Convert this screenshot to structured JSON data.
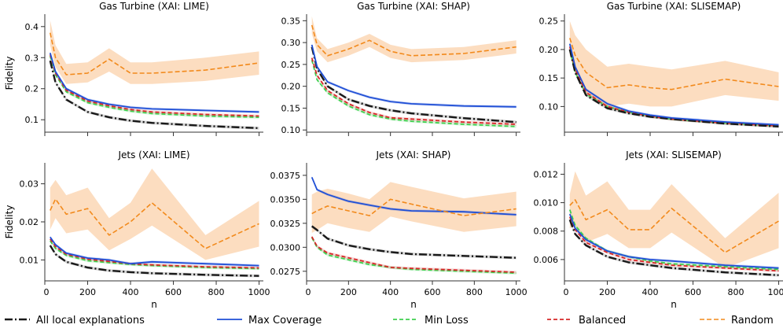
{
  "figure": {
    "shared_xlabel": "n",
    "shared_ylabel": "Fidelity",
    "x_ticks": [
      "200",
      "400",
      "600",
      "800",
      "1000"
    ]
  },
  "legend": [
    {
      "label": "All local explanations",
      "color": "#1a1a1a",
      "style": "dashdot"
    },
    {
      "label": "Max Coverage",
      "color": "#1f4fd6",
      "style": "solid"
    },
    {
      "label": "Min Loss",
      "color": "#3fcf4f",
      "style": "dashed"
    },
    {
      "label": "Balanced",
      "color": "#d62728",
      "style": "dashed"
    },
    {
      "label": "Random",
      "color": "#f28a1c",
      "style": "dashed"
    }
  ],
  "colors": {
    "all": "#1a1a1a",
    "maxcov": "#1f4fd6",
    "minloss": "#3fcf4f",
    "balanced": "#d62728",
    "random": "#f28a1c",
    "random_band": "#f9c18d"
  },
  "chart_data": [
    {
      "type": "line",
      "title": "Gas Turbine (XAI: LIME)",
      "xlabel": "",
      "ylabel": "Fidelity",
      "xlim": [
        0,
        1020
      ],
      "ylim": [
        0.06,
        0.44
      ],
      "yticks": [
        0.1,
        0.2,
        0.3,
        0.4
      ],
      "ytick_labels": [
        "0.1",
        "0.2",
        "0.3",
        "0.4"
      ],
      "x": [
        25,
        50,
        100,
        200,
        300,
        400,
        500,
        750,
        1000
      ],
      "series": [
        {
          "name": "All local explanations",
          "values": [
            0.29,
            0.22,
            0.165,
            0.125,
            0.108,
            0.097,
            0.09,
            0.08,
            0.073
          ]
        },
        {
          "name": "Max Coverage",
          "values": [
            0.315,
            0.255,
            0.2,
            0.165,
            0.15,
            0.14,
            0.135,
            0.13,
            0.125
          ]
        },
        {
          "name": "Min Loss",
          "values": [
            0.305,
            0.245,
            0.19,
            0.155,
            0.14,
            0.128,
            0.12,
            0.112,
            0.108
          ]
        },
        {
          "name": "Balanced",
          "values": [
            0.31,
            0.25,
            0.195,
            0.16,
            0.145,
            0.133,
            0.125,
            0.117,
            0.112
          ]
        },
        {
          "name": "Random",
          "values": [
            0.38,
            0.3,
            0.245,
            0.25,
            0.295,
            0.25,
            0.25,
            0.26,
            0.283
          ],
          "band": [
            [
              0.34,
              0.42
            ],
            [
              0.27,
              0.34
            ],
            [
              0.215,
              0.28
            ],
            [
              0.22,
              0.285
            ],
            [
              0.255,
              0.33
            ],
            [
              0.215,
              0.285
            ],
            [
              0.215,
              0.285
            ],
            [
              0.225,
              0.3
            ],
            [
              0.245,
              0.32
            ]
          ]
        }
      ]
    },
    {
      "type": "line",
      "title": "Gas Turbine (XAI: SHAP)",
      "xlabel": "",
      "ylabel": "",
      "xlim": [
        0,
        1020
      ],
      "ylim": [
        0.095,
        0.365
      ],
      "yticks": [
        0.1,
        0.15,
        0.2,
        0.25,
        0.3,
        0.35
      ],
      "ytick_labels": [
        "0.10",
        "0.15",
        "0.20",
        "0.25",
        "0.30",
        "0.35"
      ],
      "x": [
        25,
        50,
        100,
        200,
        300,
        400,
        500,
        750,
        1000
      ],
      "series": [
        {
          "name": "All local explanations",
          "values": [
            0.29,
            0.24,
            0.2,
            0.17,
            0.155,
            0.145,
            0.138,
            0.127,
            0.118
          ]
        },
        {
          "name": "Max Coverage",
          "values": [
            0.295,
            0.245,
            0.21,
            0.19,
            0.175,
            0.165,
            0.16,
            0.155,
            0.153
          ]
        },
        {
          "name": "Min Loss",
          "values": [
            0.26,
            0.215,
            0.185,
            0.155,
            0.135,
            0.125,
            0.12,
            0.113,
            0.108
          ]
        },
        {
          "name": "Balanced",
          "values": [
            0.265,
            0.225,
            0.19,
            0.16,
            0.14,
            0.128,
            0.125,
            0.118,
            0.113
          ]
        },
        {
          "name": "Random",
          "values": [
            0.34,
            0.295,
            0.27,
            0.285,
            0.305,
            0.28,
            0.27,
            0.275,
            0.29
          ],
          "band": [
            [
              0.32,
              0.36
            ],
            [
              0.28,
              0.31
            ],
            [
              0.255,
              0.285
            ],
            [
              0.27,
              0.3
            ],
            [
              0.29,
              0.32
            ],
            [
              0.265,
              0.295
            ],
            [
              0.255,
              0.285
            ],
            [
              0.26,
              0.29
            ],
            [
              0.275,
              0.305
            ]
          ]
        }
      ]
    },
    {
      "type": "line",
      "title": "Gas Turbine (XAI: SLISEMAP)",
      "xlabel": "",
      "ylabel": "",
      "xlim": [
        0,
        1020
      ],
      "ylim": [
        0.055,
        0.262
      ],
      "yticks": [
        0.1,
        0.15,
        0.2,
        0.25
      ],
      "ytick_labels": [
        "0.10",
        "0.15",
        "0.20",
        "0.25"
      ],
      "x": [
        25,
        50,
        100,
        200,
        300,
        400,
        500,
        750,
        1000
      ],
      "series": [
        {
          "name": "All local explanations",
          "values": [
            0.2,
            0.16,
            0.12,
            0.097,
            0.088,
            0.082,
            0.078,
            0.07,
            0.065
          ]
        },
        {
          "name": "Max Coverage",
          "values": [
            0.21,
            0.17,
            0.13,
            0.105,
            0.092,
            0.085,
            0.08,
            0.073,
            0.068
          ]
        },
        {
          "name": "Min Loss",
          "values": [
            0.2,
            0.16,
            0.122,
            0.1,
            0.09,
            0.083,
            0.078,
            0.071,
            0.066
          ]
        },
        {
          "name": "Balanced",
          "values": [
            0.205,
            0.165,
            0.125,
            0.1,
            0.09,
            0.083,
            0.078,
            0.071,
            0.066
          ]
        },
        {
          "name": "Random",
          "values": [
            0.22,
            0.19,
            0.16,
            0.133,
            0.138,
            0.133,
            0.13,
            0.148,
            0.135
          ],
          "band": [
            [
              0.19,
              0.25
            ],
            [
              0.16,
              0.225
            ],
            [
              0.125,
              0.2
            ],
            [
              0.1,
              0.17
            ],
            [
              0.105,
              0.175
            ],
            [
              0.1,
              0.17
            ],
            [
              0.1,
              0.165
            ],
            [
              0.12,
              0.18
            ],
            [
              0.11,
              0.16
            ]
          ]
        }
      ]
    },
    {
      "type": "line",
      "title": "Jets (XAI: LIME)",
      "xlabel": "n",
      "ylabel": "Fidelity",
      "xlim": [
        0,
        1020
      ],
      "ylim": [
        0.0045,
        0.0355
      ],
      "yticks": [
        0.01,
        0.02,
        0.03
      ],
      "ytick_labels": [
        "0.01",
        "0.02",
        "0.03"
      ],
      "x": [
        25,
        50,
        100,
        200,
        300,
        400,
        500,
        750,
        1000
      ],
      "series": [
        {
          "name": "All local explanations",
          "values": [
            0.0138,
            0.0115,
            0.0095,
            0.008,
            0.0072,
            0.0068,
            0.0065,
            0.0061,
            0.0058
          ]
        },
        {
          "name": "Max Coverage",
          "values": [
            0.016,
            0.014,
            0.0118,
            0.0105,
            0.01,
            0.009,
            0.0095,
            0.009,
            0.0085
          ]
        },
        {
          "name": "Min Loss",
          "values": [
            0.015,
            0.013,
            0.0112,
            0.0098,
            0.0093,
            0.0088,
            0.0085,
            0.008,
            0.0077
          ]
        },
        {
          "name": "Balanced",
          "values": [
            0.0155,
            0.0135,
            0.0115,
            0.0102,
            0.0096,
            0.009,
            0.0087,
            0.0082,
            0.0079
          ]
        },
        {
          "name": "Random",
          "values": [
            0.023,
            0.026,
            0.022,
            0.0235,
            0.0165,
            0.02,
            0.025,
            0.013,
            0.0195
          ],
          "band": [
            [
              0.018,
              0.029
            ],
            [
              0.021,
              0.031
            ],
            [
              0.017,
              0.027
            ],
            [
              0.018,
              0.029
            ],
            [
              0.0125,
              0.021
            ],
            [
              0.0155,
              0.025
            ],
            [
              0.019,
              0.034
            ],
            [
              0.01,
              0.0165
            ],
            [
              0.0135,
              0.0255
            ]
          ]
        }
      ]
    },
    {
      "type": "line",
      "title": "Jets (XAI: SHAP)",
      "xlabel": "n",
      "ylabel": "",
      "xlim": [
        0,
        1020
      ],
      "ylim": [
        0.0265,
        0.0388
      ],
      "yticks": [
        0.0275,
        0.03,
        0.0325,
        0.035,
        0.0375
      ],
      "ytick_labels": [
        "0.0275",
        "0.0300",
        "0.0325",
        "0.0350",
        "0.0375"
      ],
      "x": [
        25,
        50,
        100,
        200,
        300,
        400,
        500,
        750,
        1000
      ],
      "series": [
        {
          "name": "All local explanations",
          "values": [
            0.0322,
            0.0318,
            0.0309,
            0.0302,
            0.0298,
            0.0295,
            0.0293,
            0.0291,
            0.0289
          ]
        },
        {
          "name": "Max Coverage",
          "values": [
            0.0373,
            0.036,
            0.0355,
            0.0348,
            0.0344,
            0.034,
            0.0338,
            0.0337,
            0.0334
          ]
        },
        {
          "name": "Min Loss",
          "values": [
            0.031,
            0.03,
            0.0292,
            0.0287,
            0.0282,
            0.0279,
            0.0277,
            0.0275,
            0.0273
          ]
        },
        {
          "name": "Balanced",
          "values": [
            0.0311,
            0.0301,
            0.0294,
            0.0289,
            0.0284,
            0.0279,
            0.0278,
            0.0276,
            0.0274
          ]
        },
        {
          "name": "Random",
          "values": [
            0.0335,
            0.0338,
            0.0343,
            0.0338,
            0.0333,
            0.035,
            0.0345,
            0.0333,
            0.034
          ],
          "band": [
            [
              0.0315,
              0.0355
            ],
            [
              0.0318,
              0.0358
            ],
            [
              0.0325,
              0.0361
            ],
            [
              0.032,
              0.0356
            ],
            [
              0.0316,
              0.035
            ],
            [
              0.0332,
              0.0368
            ],
            [
              0.0327,
              0.0363
            ],
            [
              0.0316,
              0.0351
            ],
            [
              0.0322,
              0.0358
            ]
          ]
        }
      ]
    },
    {
      "type": "line",
      "title": "Jets (XAI: SLISEMAP)",
      "xlabel": "n",
      "ylabel": "",
      "xlim": [
        0,
        1020
      ],
      "ylim": [
        0.0045,
        0.0128
      ],
      "yticks": [
        0.006,
        0.008,
        0.01,
        0.012
      ],
      "ytick_labels": [
        "0.006",
        "0.008",
        "0.010",
        "0.012"
      ],
      "x": [
        25,
        50,
        100,
        200,
        300,
        400,
        500,
        750,
        1000
      ],
      "series": [
        {
          "name": "All local explanations",
          "values": [
            0.0088,
            0.0078,
            0.007,
            0.0062,
            0.0058,
            0.0056,
            0.0054,
            0.0051,
            0.0049
          ]
        },
        {
          "name": "Max Coverage",
          "values": [
            0.0092,
            0.0082,
            0.0074,
            0.0066,
            0.0062,
            0.006,
            0.0059,
            0.0056,
            0.0054
          ]
        },
        {
          "name": "Min Loss",
          "values": [
            0.0095,
            0.0084,
            0.0075,
            0.0066,
            0.0062,
            0.0059,
            0.0057,
            0.0055,
            0.0053
          ]
        },
        {
          "name": "Balanced",
          "values": [
            0.009,
            0.0081,
            0.0072,
            0.0065,
            0.006,
            0.0058,
            0.0056,
            0.0054,
            0.0052
          ]
        },
        {
          "name": "Random",
          "values": [
            0.0098,
            0.0102,
            0.0088,
            0.0095,
            0.0081,
            0.0081,
            0.0096,
            0.0065,
            0.0087
          ],
          "band": [
            [
              0.0082,
              0.0106
            ],
            [
              0.0084,
              0.0122
            ],
            [
              0.0072,
              0.0105
            ],
            [
              0.0078,
              0.0115
            ],
            [
              0.0068,
              0.0095
            ],
            [
              0.0068,
              0.0095
            ],
            [
              0.0079,
              0.0113
            ],
            [
              0.0054,
              0.0075
            ],
            [
              0.0068,
              0.0107
            ]
          ]
        }
      ]
    }
  ]
}
